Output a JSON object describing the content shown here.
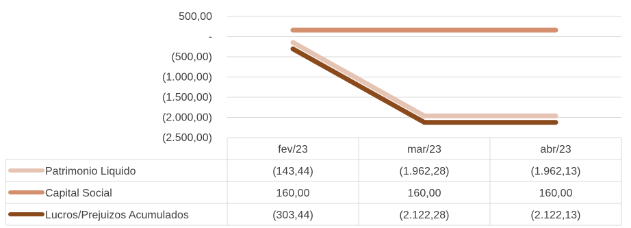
{
  "chart_data": {
    "type": "line",
    "title": "",
    "xlabel": "",
    "ylabel": "",
    "categories": [
      "fev/23",
      "mar/23",
      "abr/23"
    ],
    "ylim": [
      -2500,
      500
    ],
    "yticks": [
      500,
      0,
      -500,
      -1000,
      -1500,
      -2000,
      -2500
    ],
    "ytick_labels": [
      "500,00",
      "-",
      "(500,00)",
      "(1.000,00)",
      "(1.500,00)",
      "(2.000,00)",
      "(2.500,00)"
    ],
    "grid": true,
    "legend": "data-table",
    "series": [
      {
        "name": "Patrimonio Liquido",
        "color": "#E6C4B4",
        "values": [
          -143.44,
          -1962.28,
          -1962.13
        ],
        "labels": [
          "(143,44)",
          "(1.962,28)",
          "(1.962,13)"
        ]
      },
      {
        "name": "Capital Social",
        "color": "#D4906E",
        "values": [
          160.0,
          160.0,
          160.0
        ],
        "labels": [
          "160,00",
          "160,00",
          "160,00"
        ]
      },
      {
        "name": "Lucros/Prejuizos Acumulados",
        "color": "#8B4A1C",
        "values": [
          -303.44,
          -2122.28,
          -2122.13
        ],
        "labels": [
          "(303,44)",
          "(2.122,28)",
          "(2.122,13)"
        ]
      }
    ]
  }
}
